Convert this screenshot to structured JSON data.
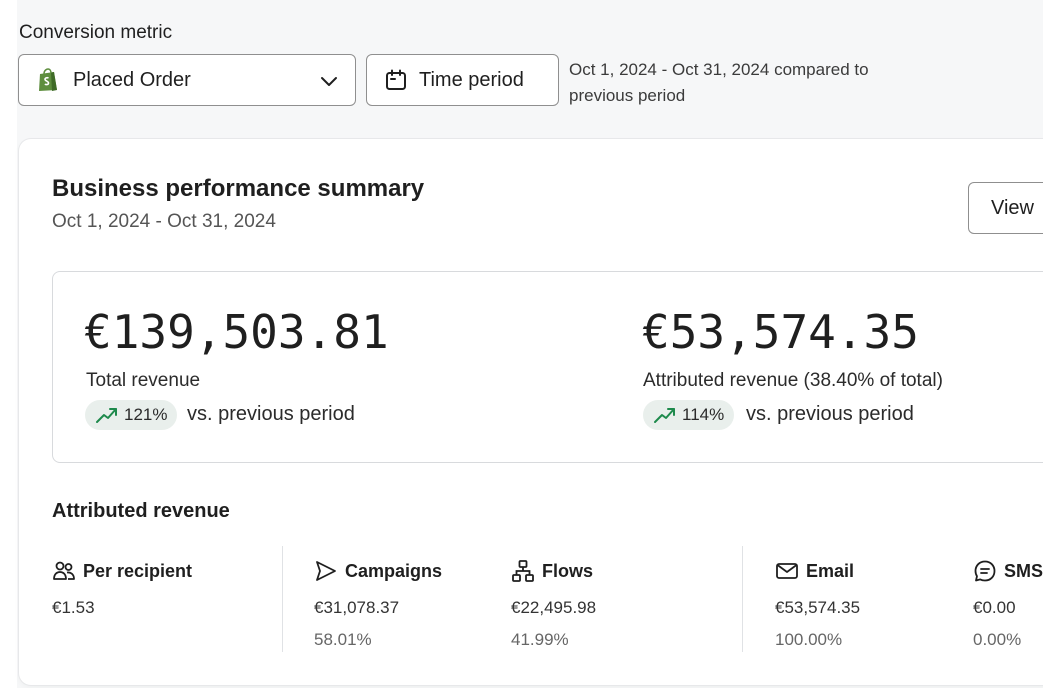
{
  "conversion_metric": {
    "label": "Conversion metric",
    "selected": "Placed Order",
    "selected_icon": "shopify-bag-icon"
  },
  "time_period": {
    "button_label": "Time period",
    "range_line1": "Oct 1, 2024 - Oct 31, 2024 compared to",
    "range_line2": "previous period"
  },
  "summary": {
    "title": "Business performance summary",
    "date_range": "Oct 1, 2024 - Oct 31, 2024",
    "view_button": "View",
    "total": {
      "value": "€139,503.81",
      "label": "Total revenue",
      "change": "121%",
      "vs": "vs. previous period"
    },
    "attributed": {
      "value": "€53,574.35",
      "label": "Attributed revenue (38.40% of total)",
      "change": "114%",
      "vs": "vs. previous period"
    }
  },
  "attributed_revenue": {
    "title": "Attributed revenue",
    "columns": [
      {
        "name": "Per recipient",
        "icon": "people-icon",
        "value": "€1.53",
        "pct": ""
      },
      {
        "name": "Campaigns",
        "icon": "send-icon",
        "value": "€31,078.37",
        "pct": "58.01%"
      },
      {
        "name": "Flows",
        "icon": "flow-icon",
        "value": "€22,495.98",
        "pct": "41.99%"
      },
      {
        "name": "Email",
        "icon": "email-icon",
        "value": "€53,574.35",
        "pct": "100.00%"
      },
      {
        "name": "SMS",
        "icon": "sms-icon",
        "value": "€0.00",
        "pct": "0.00%"
      }
    ]
  },
  "colors": {
    "trend_green": "#1e8a4c",
    "trend_pill_bg": "#e9efec",
    "shopify_green": "#5e8e3e"
  }
}
